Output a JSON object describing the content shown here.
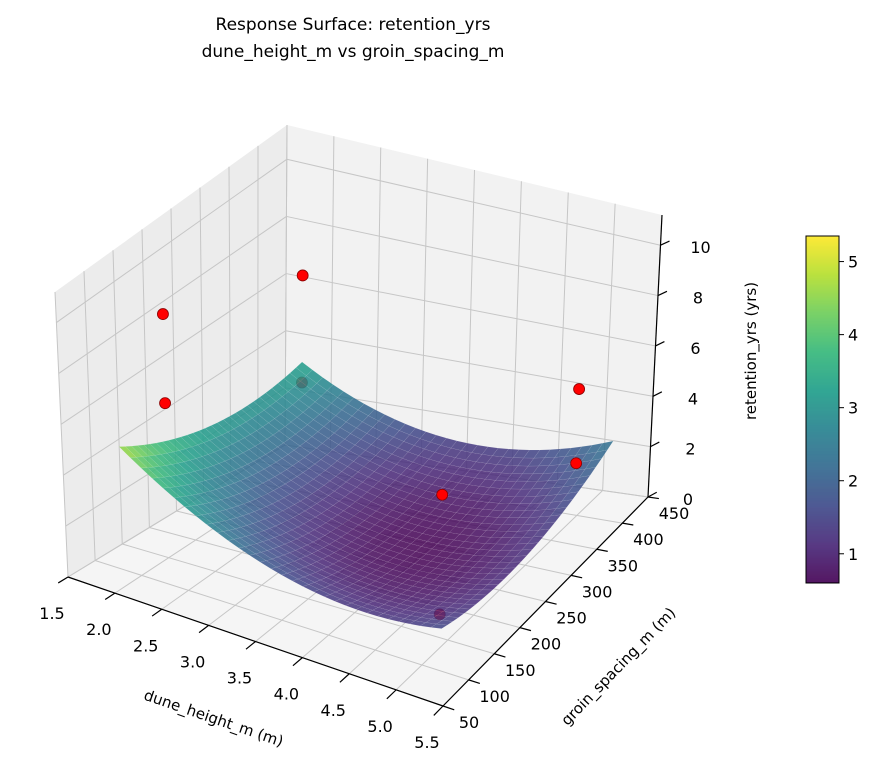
{
  "chart_data": {
    "type": "surface3d",
    "title_line1": "Response Surface: retention_yrs",
    "title_line2": "dune_height_m vs groin_spacing_m",
    "xlabel": "dune_height_m (m)",
    "ylabel": "groin_spacing_m (m)",
    "zlabel": "retention_yrs (yrs)",
    "xlim": [
      1.5,
      5.5
    ],
    "ylim": [
      50,
      450
    ],
    "zlim": [
      0,
      11.2
    ],
    "xticks": [
      "1.5",
      "2.0",
      "2.5",
      "3.0",
      "3.5",
      "4.0",
      "4.5",
      "5.0",
      "5.5"
    ],
    "yticks": [
      "50",
      "100",
      "150",
      "200",
      "250",
      "300",
      "350",
      "400",
      "450"
    ],
    "zticks": [
      "0",
      "2",
      "4",
      "6",
      "8",
      "10"
    ],
    "grid": true,
    "colormap": "viridis",
    "surface_alpha": 0.85,
    "surface": {
      "x_range": [
        1.8,
        5.2
      ],
      "y_range": [
        100,
        430
      ],
      "model": "z = 0.6 + 0.5*(x-4.1)^2 + 3e-5*(y-260)^2 + 0.002*(x-4.1)*(y-260)"
    },
    "points": [
      {
        "x": 2.0,
        "y": 150,
        "z": 9.3
      },
      {
        "x": 2.0,
        "y": 150,
        "z": 5.9
      },
      {
        "x": 1.8,
        "y": 430,
        "z": 6.4
      },
      {
        "x": 1.8,
        "y": 430,
        "z": 2.6
      },
      {
        "x": 4.8,
        "y": 170,
        "z": 5.0
      },
      {
        "x": 4.8,
        "y": 170,
        "z": 0.4
      },
      {
        "x": 5.4,
        "y": 320,
        "z": 6.8
      },
      {
        "x": 5.4,
        "y": 320,
        "z": 3.9
      }
    ],
    "point_color": "#ff0000",
    "colorbar": {
      "min": 0.6,
      "max": 5.35,
      "ticks": [
        "1",
        "2",
        "3",
        "4",
        "5"
      ]
    }
  }
}
